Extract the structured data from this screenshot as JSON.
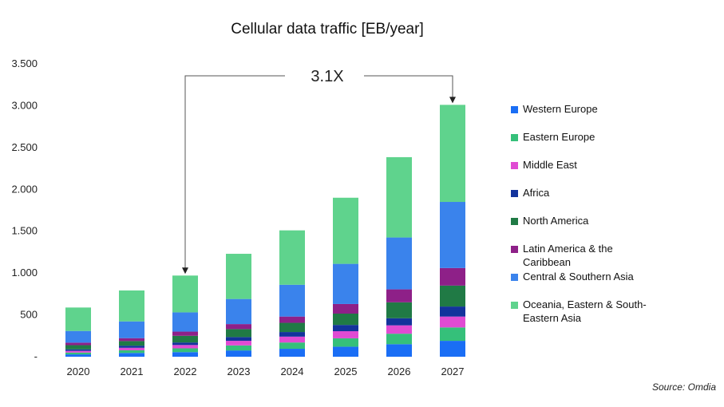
{
  "chart_data": {
    "type": "bar",
    "stacked": true,
    "title": "Cellular data traffic [EB/year]",
    "categories": [
      "2020",
      "2021",
      "2022",
      "2023",
      "2024",
      "2025",
      "2026",
      "2027"
    ],
    "y_tick_labels": [
      "-",
      "500",
      "1.000",
      "1.500",
      "2.000",
      "2.500",
      "3.000",
      "3.500"
    ],
    "y_ticks": [
      0,
      500,
      1000,
      1500,
      2000,
      2500,
      3000,
      3500
    ],
    "ylim": [
      0,
      3500
    ],
    "annotation": {
      "label": "3.1X",
      "from": "2022",
      "to": "2027"
    },
    "series": [
      {
        "name": "Western Europe",
        "color": "#1a6ef5",
        "values": [
          28,
          45,
          55,
          75,
          95,
          120,
          150,
          190
        ]
      },
      {
        "name": "Eastern Europe",
        "color": "#35c07a",
        "values": [
          22,
          32,
          45,
          60,
          75,
          100,
          125,
          160
        ]
      },
      {
        "name": "Middle East",
        "color": "#e04bd3",
        "values": [
          20,
          30,
          40,
          55,
          70,
          85,
          100,
          130
        ]
      },
      {
        "name": "Africa",
        "color": "#13339c",
        "values": [
          18,
          25,
          30,
          45,
          55,
          75,
          85,
          120
        ]
      },
      {
        "name": "North America",
        "color": "#207a45",
        "values": [
          50,
          55,
          80,
          95,
          110,
          135,
          190,
          250
        ]
      },
      {
        "name": "Latin America & the Caribbean",
        "color": "#8e2088",
        "values": [
          30,
          35,
          50,
          60,
          75,
          115,
          155,
          210
        ]
      },
      {
        "name": "Central & Southern Asia",
        "color": "#3a83ec",
        "values": [
          140,
          200,
          230,
          300,
          380,
          480,
          620,
          790
        ]
      },
      {
        "name": "Oceania, Eastern & South-Eastern Asia",
        "color": "#5fd38d",
        "values": [
          280,
          370,
          440,
          540,
          650,
          790,
          960,
          1160
        ]
      }
    ],
    "legend_position": "right",
    "grid": false
  },
  "legend": {
    "items": [
      {
        "lines": [
          "Western Europe"
        ],
        "color": "#1a6ef5"
      },
      {
        "lines": [
          "Eastern Europe"
        ],
        "color": "#35c07a"
      },
      {
        "lines": [
          "Middle East"
        ],
        "color": "#e04bd3"
      },
      {
        "lines": [
          "Africa"
        ],
        "color": "#13339c"
      },
      {
        "lines": [
          "North America"
        ],
        "color": "#207a45"
      },
      {
        "lines": [
          "Latin America & the",
          "Caribbean"
        ],
        "color": "#8e2088"
      },
      {
        "lines": [
          "Central & Southern Asia"
        ],
        "color": "#3a83ec"
      },
      {
        "lines": [
          "Oceania, Eastern & South-",
          "Eastern Asia"
        ],
        "color": "#5fd38d"
      }
    ]
  },
  "source": "Source: Omdia"
}
